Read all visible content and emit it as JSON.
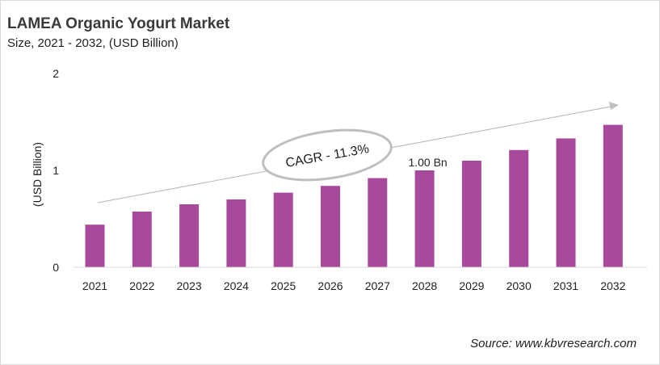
{
  "title": "LAMEA Organic Yogurt Market",
  "subtitle": "Size, 2021 - 2032, (USD Billion)",
  "source": "Source: www.kbvresearch.com",
  "chart_data": {
    "type": "bar",
    "ylabel": "(USD Billion)",
    "xlabel": "",
    "ylim": [
      0,
      2
    ],
    "yticks": [
      "0",
      "1",
      "2"
    ],
    "grid": false,
    "categories": [
      "2021",
      "2022",
      "2023",
      "2024",
      "2025",
      "2026",
      "2027",
      "2028",
      "2029",
      "2030",
      "2031",
      "2032"
    ],
    "values": [
      0.44,
      0.575,
      0.65,
      0.7,
      0.77,
      0.84,
      0.92,
      1.0,
      1.1,
      1.21,
      1.33,
      1.47
    ],
    "bar_color": "#a84a9c",
    "annotations": {
      "data_label": "1.00 Bn",
      "data_label_category": "2028",
      "cagr": "CAGR - 11.3%"
    }
  }
}
